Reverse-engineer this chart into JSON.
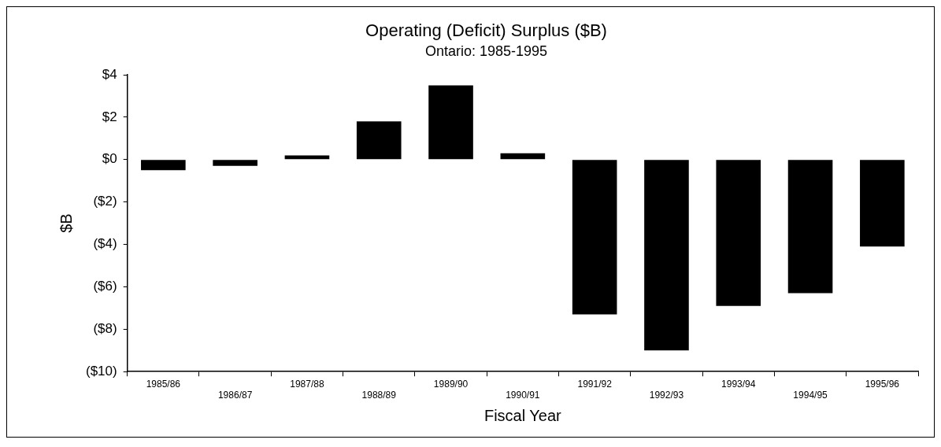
{
  "chart_data": {
    "type": "bar",
    "title": "Operating (Deficit) Surplus ($B)",
    "subtitle": "Ontario: 1985-1995",
    "xlabel": "Fiscal Year",
    "ylabel": "$B",
    "categories": [
      "1985/86",
      "1986/87",
      "1987/88",
      "1988/89",
      "1989/90",
      "1990/91",
      "1991/92",
      "1992/93",
      "1993/94",
      "1994/95",
      "1995/96"
    ],
    "values": [
      -0.5,
      -0.3,
      0.2,
      1.8,
      3.5,
      0.3,
      -7.3,
      -9.0,
      -6.9,
      -6.3,
      -4.1
    ],
    "color": "#000000",
    "ylim": [
      -10,
      4
    ],
    "yticks": [
      {
        "value": 4,
        "label": "$4"
      },
      {
        "value": 2,
        "label": "$2"
      },
      {
        "value": 0,
        "label": "$0"
      },
      {
        "value": -2,
        "label": "($2)"
      },
      {
        "value": -4,
        "label": "($4)"
      },
      {
        "value": -6,
        "label": "($6)"
      },
      {
        "value": -8,
        "label": "($8)"
      },
      {
        "value": -10,
        "label": "($10)"
      }
    ],
    "grid": false,
    "legend": false
  }
}
